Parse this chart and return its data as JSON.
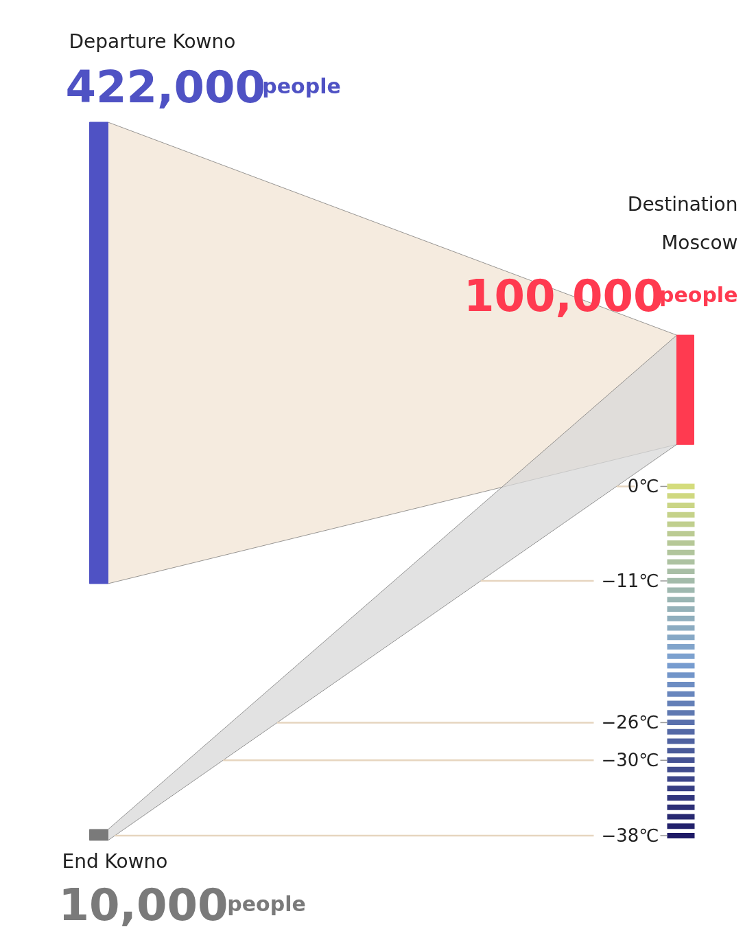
{
  "chart_data": {
    "type": "other",
    "categories": [
      "Departure Kowno",
      "Destination\nMoscow",
      "End Kowno"
    ],
    "values": [
      422000,
      100000,
      10000
    ],
    "value_labels": [
      "422,000people",
      "100,000people",
      "10,000people"
    ],
    "colors": [
      "#4f52c4",
      "#ff3a50",
      "#7a7a7a"
    ],
    "annotations": [
      "0℃",
      "−11℃",
      "−26℃",
      "−30℃",
      "−38℃"
    ]
  }
}
